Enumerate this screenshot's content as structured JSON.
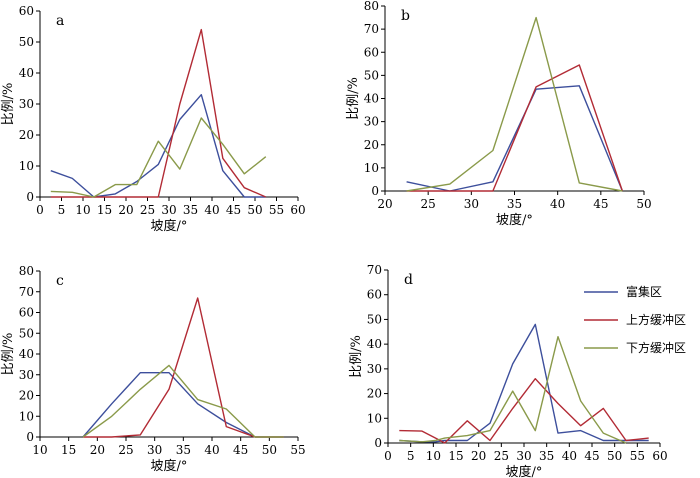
{
  "shared": {
    "xlabel": "坡度/°",
    "ylabel": "比例/%",
    "colors": {
      "富集区": "#3d4f9c",
      "上方缓冲区": "#b22b35",
      "下方缓冲区": "#8a9a4a"
    }
  },
  "legend": {
    "placement": "right of panel d",
    "items": [
      {
        "label": "富集区",
        "color": "#3d4f9c"
      },
      {
        "label": "上方缓冲区",
        "color": "#b22b35"
      },
      {
        "label": "下方缓冲区",
        "color": "#8a9a4a"
      }
    ]
  },
  "chart_data": [
    {
      "panel": "a",
      "type": "line",
      "xlim": [
        0,
        60
      ],
      "ylim": [
        0,
        60
      ],
      "xticks": [
        0,
        5,
        10,
        15,
        20,
        25,
        30,
        35,
        40,
        45,
        50,
        55,
        60
      ],
      "yticks": [
        0,
        10,
        20,
        30,
        40,
        50,
        60
      ],
      "x": [
        2.5,
        7.5,
        12.5,
        17.5,
        22.5,
        27.5,
        32.5,
        37.5,
        42.5,
        47.5,
        52.5,
        57.5
      ],
      "series": [
        {
          "name": "富集区",
          "values": [
            8.5,
            6,
            0,
            1,
            5,
            10.5,
            25,
            33,
            8.5,
            0,
            0,
            null
          ]
        },
        {
          "name": "上方缓冲区",
          "values": [
            0,
            0,
            0,
            0,
            0,
            0,
            30,
            54,
            12.5,
            3,
            0,
            null
          ]
        },
        {
          "name": "下方缓冲区",
          "values": [
            1.8,
            1.5,
            0,
            4,
            4,
            18,
            9,
            25.5,
            17,
            7.5,
            13,
            null
          ]
        }
      ],
      "x_offset": 5
    },
    {
      "panel": "b",
      "type": "line",
      "xlim": [
        20,
        50
      ],
      "ylim": [
        0,
        80
      ],
      "xticks": [
        20,
        25,
        30,
        35,
        40,
        45,
        50
      ],
      "yticks": [
        0,
        10,
        20,
        30,
        40,
        50,
        60,
        70,
        80
      ],
      "x": [
        22.5,
        27.5,
        32.5,
        37.5,
        42.5,
        47.5
      ],
      "series": [
        {
          "name": "富集区",
          "values": [
            4,
            0,
            4,
            44,
            45.5,
            0
          ]
        },
        {
          "name": "上方缓冲区",
          "values": [
            0,
            0,
            0,
            45,
            54.5,
            0
          ]
        },
        {
          "name": "下方缓冲区",
          "values": [
            0,
            3,
            17.5,
            75,
            3.5,
            0
          ]
        }
      ]
    },
    {
      "panel": "c",
      "type": "line",
      "xlim": [
        10,
        55
      ],
      "ylim": [
        0,
        80
      ],
      "xticks": [
        10,
        15,
        20,
        25,
        30,
        35,
        40,
        45,
        50,
        55
      ],
      "yticks": [
        0,
        10,
        20,
        30,
        40,
        50,
        60,
        70,
        80
      ],
      "x": [
        17.5,
        22.5,
        27.5,
        32.5,
        37.5,
        42.5,
        47.5,
        52.5
      ],
      "series": [
        {
          "name": "富集区",
          "values": [
            0,
            16,
            31,
            31,
            16,
            7,
            0,
            0
          ]
        },
        {
          "name": "上方缓冲区",
          "values": [
            0,
            0,
            1,
            23,
            67,
            5,
            0,
            0
          ]
        },
        {
          "name": "下方缓冲区",
          "values": [
            0,
            10,
            23,
            34.5,
            18,
            13.5,
            0,
            0
          ]
        }
      ]
    },
    {
      "panel": "d",
      "type": "line",
      "xlim": [
        0,
        60
      ],
      "ylim": [
        0,
        70
      ],
      "xticks": [
        0,
        5,
        10,
        15,
        20,
        25,
        30,
        35,
        40,
        45,
        50,
        55,
        60
      ],
      "yticks": [
        0,
        10,
        20,
        30,
        40,
        50,
        60,
        70
      ],
      "x": [
        2.5,
        7.5,
        10.5,
        12.5,
        17.5,
        22.5,
        27.5,
        32.5,
        37.5,
        42.5,
        47.5,
        52.5,
        57.5
      ],
      "series": [
        {
          "name": "富集区",
          "values": [
            1,
            0.5,
            0.5,
            1,
            1,
            8,
            32,
            48,
            4,
            5,
            1,
            1,
            1
          ]
        },
        {
          "name": "上方缓冲区",
          "values": [
            5,
            4.8,
            2,
            0,
            9,
            1,
            14,
            26,
            16,
            7,
            14,
            1,
            2
          ]
        },
        {
          "name": "下方缓冲区",
          "values": [
            1,
            0.5,
            1,
            2,
            3,
            5,
            21,
            5,
            43,
            17,
            4,
            0,
            null
          ]
        }
      ]
    }
  ],
  "panel_labels": [
    "a",
    "b",
    "c",
    "d"
  ]
}
